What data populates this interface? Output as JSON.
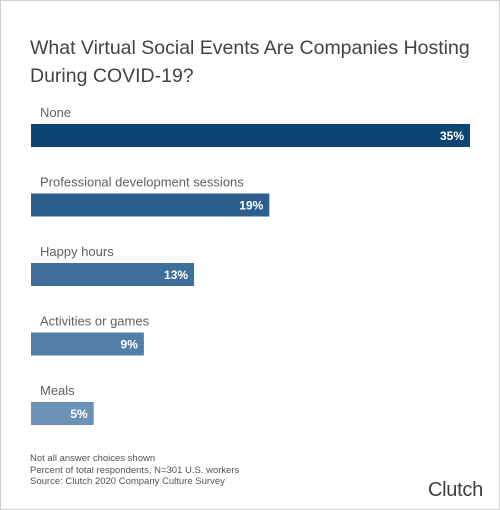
{
  "chart_data": {
    "type": "bar",
    "orientation": "horizontal",
    "title": "What Virtual Social Events Are Companies Hosting During COVID-19?",
    "categories": [
      "None",
      "Professional development sessions",
      "Happy hours",
      "Activities or games",
      "Meals"
    ],
    "values": [
      35,
      19,
      13,
      9,
      5
    ],
    "value_labels": [
      "35%",
      "19%",
      "13%",
      "9%",
      "5%"
    ],
    "colors": [
      "#0e4673",
      "#2d5f8e",
      "#3d6f9a",
      "#527fa6",
      "#6b92b5"
    ],
    "xlim": [
      0,
      35
    ],
    "grid": false,
    "legend": "none"
  },
  "notes": [
    "Not all answer choices shown",
    "Percent of total respondents, N=301 U.S. workers",
    "Source: Clutch 2020 Company Culture Survey"
  ],
  "logo_text": "Clutch"
}
